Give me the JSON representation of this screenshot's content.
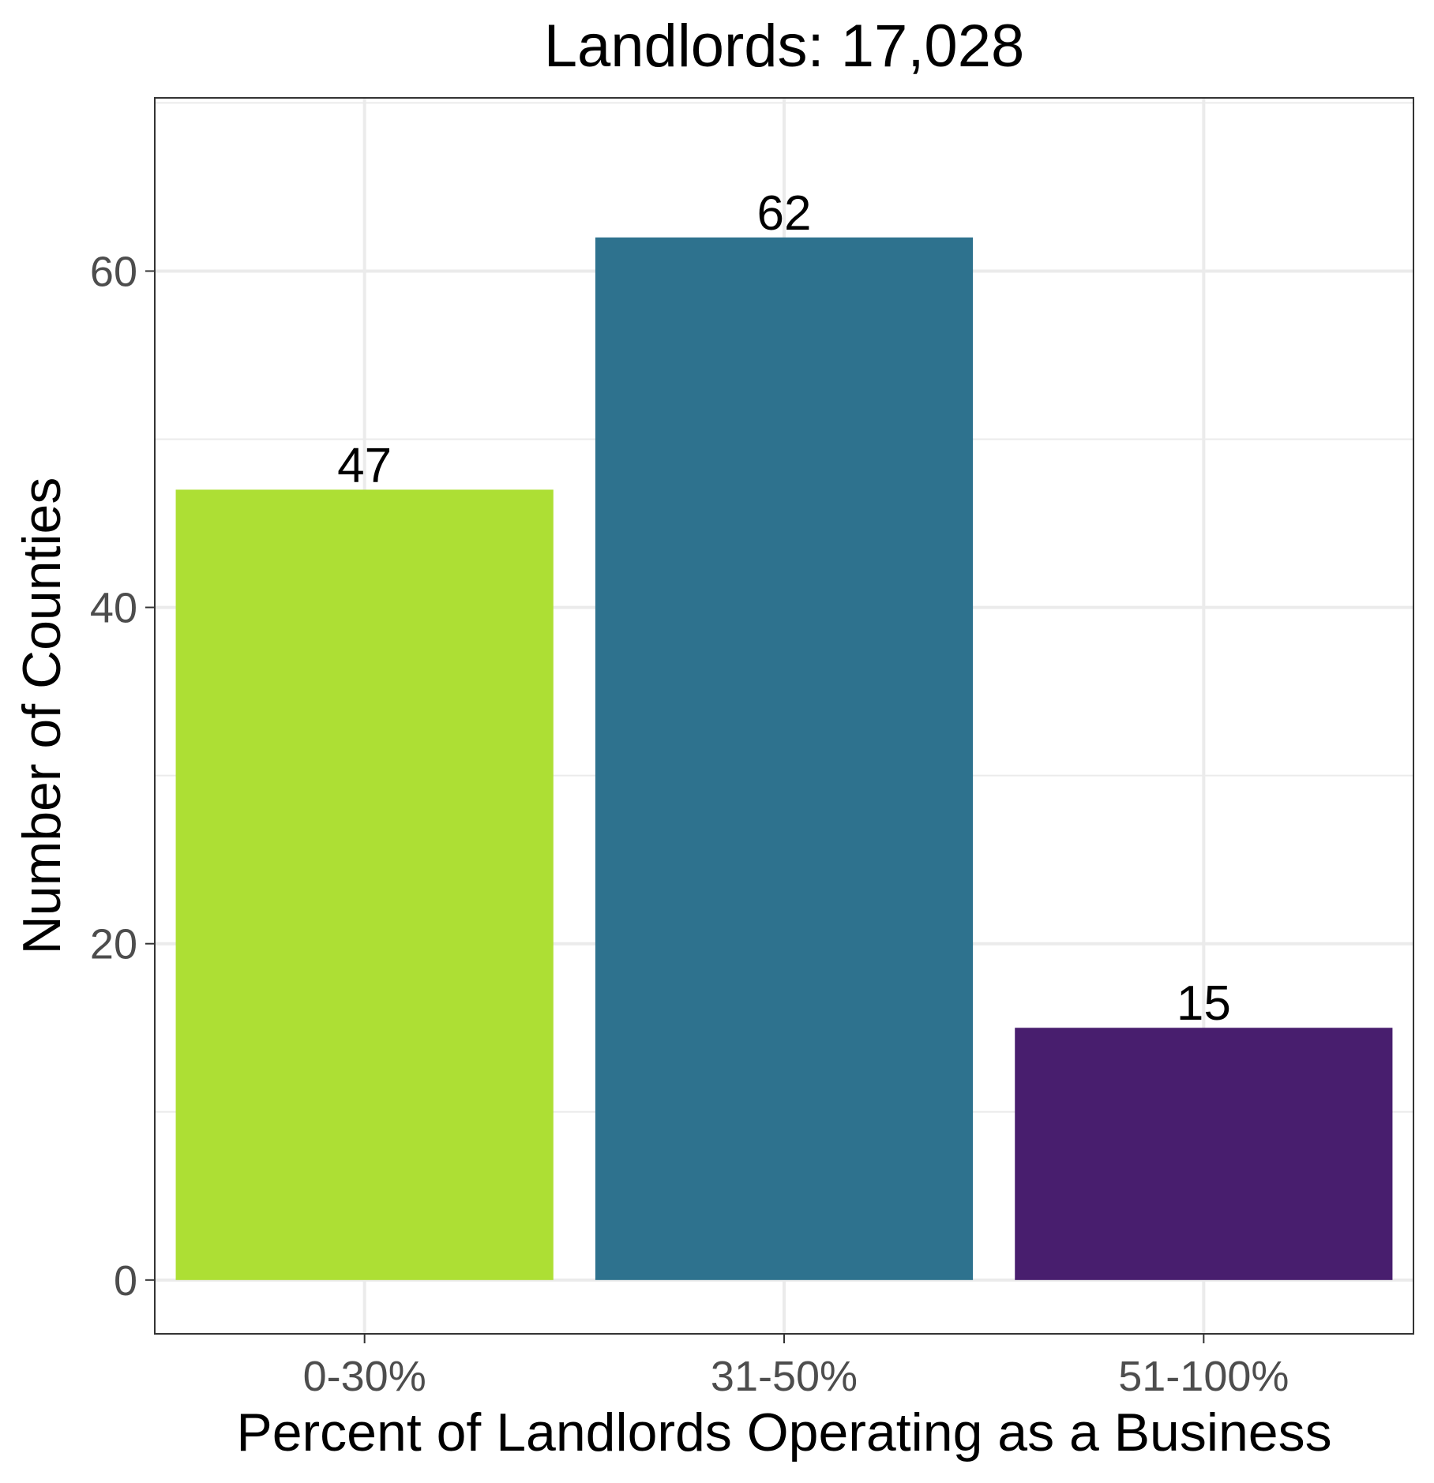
{
  "chart_data": {
    "type": "bar",
    "title": "Landlords: 17,028",
    "xlabel": "Percent of Landlords Operating as a Business",
    "ylabel": "Number of Counties",
    "categories": [
      "0-30%",
      "31-50%",
      "51-100%"
    ],
    "values": [
      47,
      62,
      15
    ],
    "data_labels": [
      "47",
      "62",
      "15"
    ],
    "colors": [
      "#addf34",
      "#2e728e",
      "#481e6e"
    ],
    "ylim": [
      -3.2,
      70.3
    ],
    "yticks": [
      0,
      20,
      40,
      60
    ],
    "ytick_labels": [
      "0",
      "20",
      "40",
      "60"
    ],
    "grid": true,
    "legend": "none"
  }
}
